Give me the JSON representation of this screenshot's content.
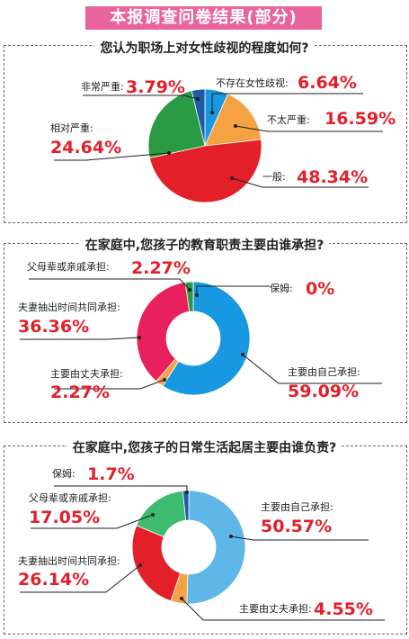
{
  "header": {
    "title": "本报调查问卷结果(部分)"
  },
  "colors": {
    "pct": "#e3202a",
    "blue": "#1798e0",
    "darkblue": "#1f5aa6",
    "orange": "#f5a243",
    "red": "#e3202a",
    "green": "#2a9a45",
    "pink": "#e8205c",
    "lightblue": "#5fb7e8",
    "lightgreen": "#3dbb6e"
  },
  "chart_data": [
    {
      "type": "pie",
      "title": "您认为职场上对女性歧视的程度如何?",
      "categories": [
        "不存在女性歧视",
        "不太严重",
        "一般",
        "相对严重",
        "非常严重"
      ],
      "values": [
        6.64,
        16.59,
        48.34,
        24.64,
        3.79
      ],
      "labels": [
        "6.64%",
        "16.59%",
        "48.34%",
        "24.64%",
        "3.79%"
      ]
    },
    {
      "type": "pie",
      "title": "在家庭中,您孩子的教育职责主要由谁承担?",
      "categories": [
        "保姆",
        "主要由自己承担",
        "主要由丈夫承担",
        "夫妻抽出时间共同承担",
        "父母辈或亲戚承担"
      ],
      "values": [
        0,
        59.09,
        2.27,
        36.36,
        2.27
      ],
      "labels": [
        "0%",
        "59.09%",
        "2.27%",
        "36.36%",
        "2.27%"
      ]
    },
    {
      "type": "pie",
      "title": "在家庭中,您孩子的日常生活起居主要由谁负责?",
      "categories": [
        "主要由自己承担",
        "主要由丈夫承担",
        "夫妻抽出时间共同承担",
        "父母辈或亲戚承担",
        "保姆"
      ],
      "values": [
        50.57,
        4.55,
        26.14,
        17.05,
        1.7
      ],
      "labels": [
        "50.57%",
        "4.55%",
        "26.14%",
        "17.05%",
        "1.7%"
      ]
    }
  ]
}
